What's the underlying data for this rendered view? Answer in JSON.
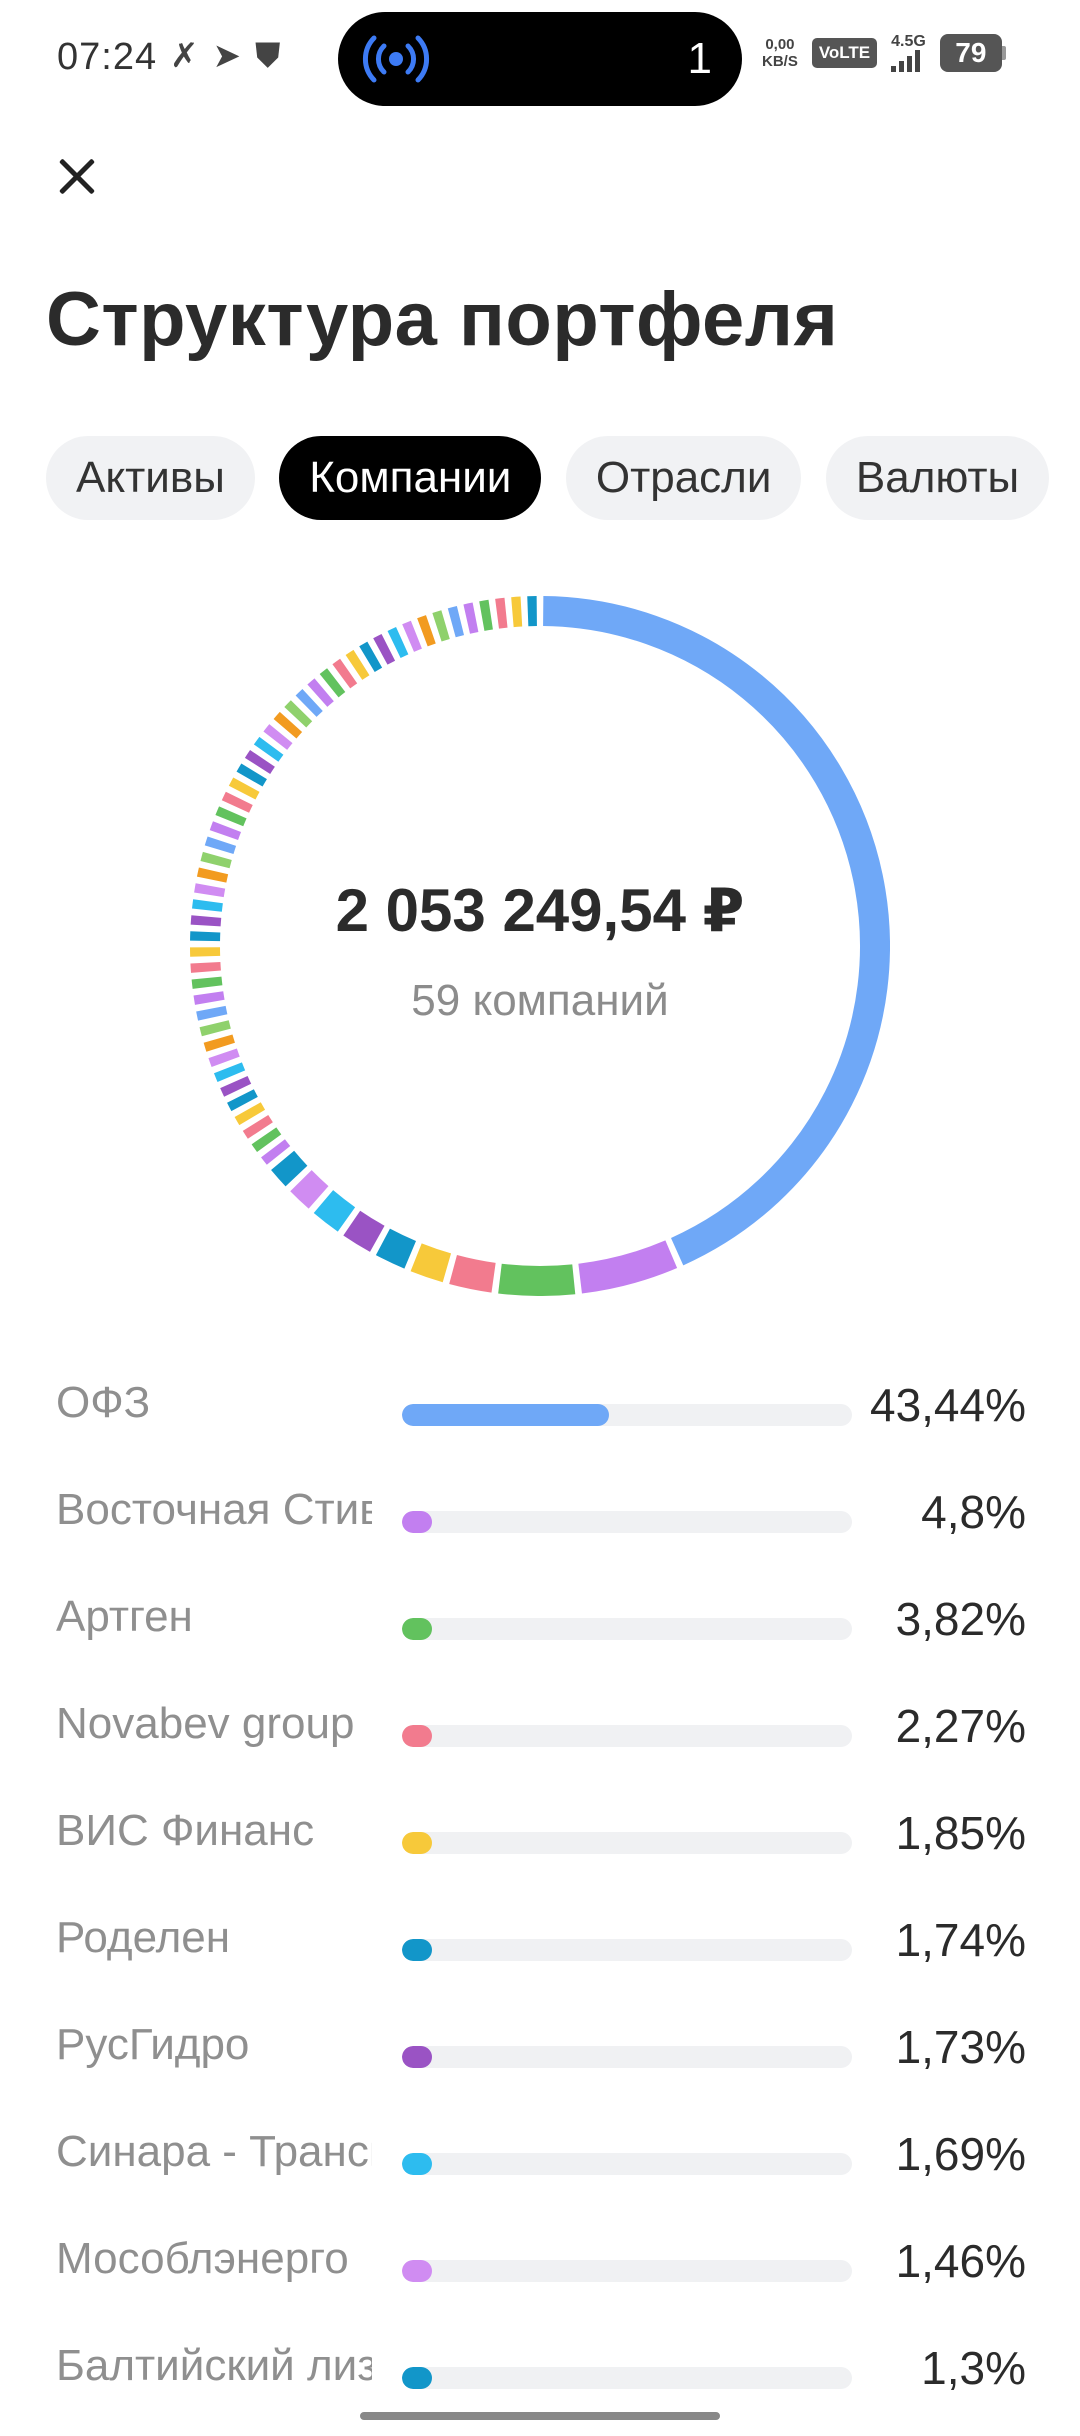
{
  "status_bar": {
    "time": "07:24",
    "notification_icons": [
      "call-missed-icon",
      "telegram-icon",
      "shield-icon"
    ],
    "island_number": "1",
    "network_speed_value": "0,00",
    "network_speed_unit": "KB/S",
    "volte": "VoLTE",
    "network_type": "4.5G",
    "battery": "79"
  },
  "header": {
    "title": "Структура портфеля"
  },
  "tabs": [
    {
      "label": "Активы",
      "active": false
    },
    {
      "label": "Компании",
      "active": true
    },
    {
      "label": "Отрасли",
      "active": false
    },
    {
      "label": "Валюты",
      "active": false
    }
  ],
  "summary": {
    "total": "2 053 249,54 ₽",
    "count": "59 компаний"
  },
  "colors": {
    "blue": "#6fa8f7",
    "purple": "#c27ff0",
    "green": "#62c25e",
    "pink": "#f27b8e",
    "yellow": "#f7c93a",
    "teal": "#1296c9",
    "violet": "#9a53c4",
    "cyan": "#2dbcef",
    "lilac": "#d08cf2",
    "orange": "#f29b20",
    "lightgreen": "#8fd16c"
  },
  "chart_data": {
    "type": "pie",
    "title": "",
    "center_total": "2 053 249,54 ₽",
    "center_caption": "59 компаний",
    "categories": [
      "ОФЗ",
      "Восточная Стивидорная Компания",
      "Артген",
      "Novabev group",
      "ВИС Финанс",
      "Роделен",
      "РусГидро",
      "Синара - Транспортные Машины",
      "Мособлэнерго",
      "Балтийский лизинг"
    ],
    "values": [
      43.44,
      4.8,
      3.82,
      2.27,
      1.85,
      1.74,
      1.73,
      1.69,
      1.46,
      1.3
    ],
    "remaining_share": 35.9,
    "remaining_companies": 49
  },
  "companies": [
    {
      "name": "ОФЗ",
      "percent": "43,44%",
      "value": 43.44,
      "color": "#6fa8f7"
    },
    {
      "name": "Восточная Стивидорная Компания",
      "percent": "4,8%",
      "value": 4.8,
      "color": "#c27ff0"
    },
    {
      "name": "Артген",
      "percent": "3,82%",
      "value": 3.82,
      "color": "#62c25e"
    },
    {
      "name": "Novabev group",
      "percent": "2,27%",
      "value": 2.27,
      "color": "#f27b8e"
    },
    {
      "name": "ВИС Финанс",
      "percent": "1,85%",
      "value": 1.85,
      "color": "#f7c93a"
    },
    {
      "name": "Роделен",
      "percent": "1,74%",
      "value": 1.74,
      "color": "#1296c9"
    },
    {
      "name": "РусГидро",
      "percent": "1,73%",
      "value": 1.73,
      "color": "#9a53c4"
    },
    {
      "name": "Синара - Транспортные Машины",
      "percent": "1,69%",
      "value": 1.69,
      "color": "#2dbcef"
    },
    {
      "name": "Мособлэнерго",
      "percent": "1,46%",
      "value": 1.46,
      "color": "#d08cf2"
    },
    {
      "name": "Балтийский лизинг",
      "percent": "1,3%",
      "value": 1.3,
      "color": "#1296c9"
    }
  ]
}
